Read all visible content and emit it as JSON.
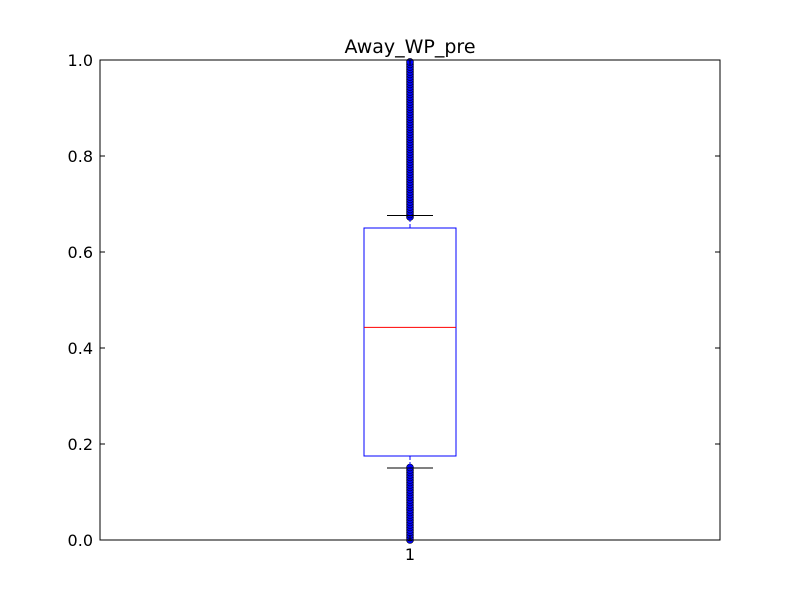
{
  "chart_data": {
    "type": "box",
    "title": "Away_WP_pre",
    "xlabel": "",
    "ylabel": "",
    "ylim": [
      0,
      1
    ],
    "yticks": [
      0.0,
      0.2,
      0.4,
      0.6,
      0.8,
      1.0
    ],
    "ytick_labels": [
      "0.0",
      "0.2",
      "0.4",
      "0.6",
      "0.8",
      "1.0"
    ],
    "categories": [
      "1"
    ],
    "box": {
      "q1": 0.175,
      "median": 0.443,
      "q3": 0.65,
      "whisker_low": 0.15,
      "whisker_high": 0.676
    },
    "outlier_ranges": [
      {
        "from": 0.0,
        "to": 0.155
      },
      {
        "from": 0.673,
        "to": 1.0
      }
    ],
    "grid": false,
    "colors": {
      "box": "#0000ff",
      "median": "#ff0000",
      "whisker": "#0000ff",
      "cap": "#000000",
      "outlier_fill": "#0000ff",
      "outlier_edge": "#000000"
    }
  }
}
